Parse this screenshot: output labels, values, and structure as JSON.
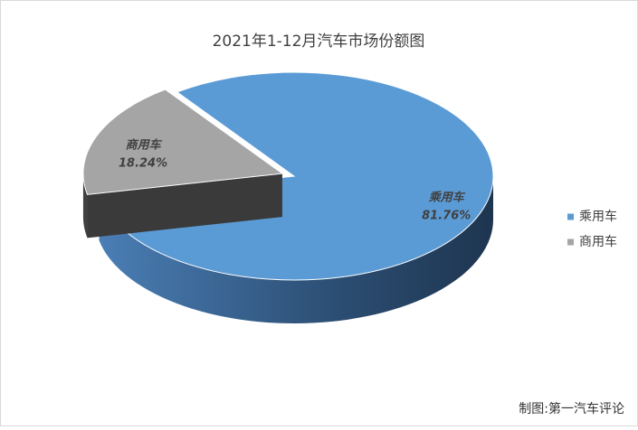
{
  "chart_data": {
    "type": "pie",
    "title": "2021年1-12月汽车市场份额图",
    "categories": [
      "乘用车",
      "商用车"
    ],
    "values": [
      81.76,
      18.24
    ],
    "value_labels": [
      "81.76%",
      "18.24%"
    ],
    "colors": [
      "#5b9bd5",
      "#a5a5a5"
    ],
    "legend": "right",
    "note": "制图:第一汽车评论"
  }
}
